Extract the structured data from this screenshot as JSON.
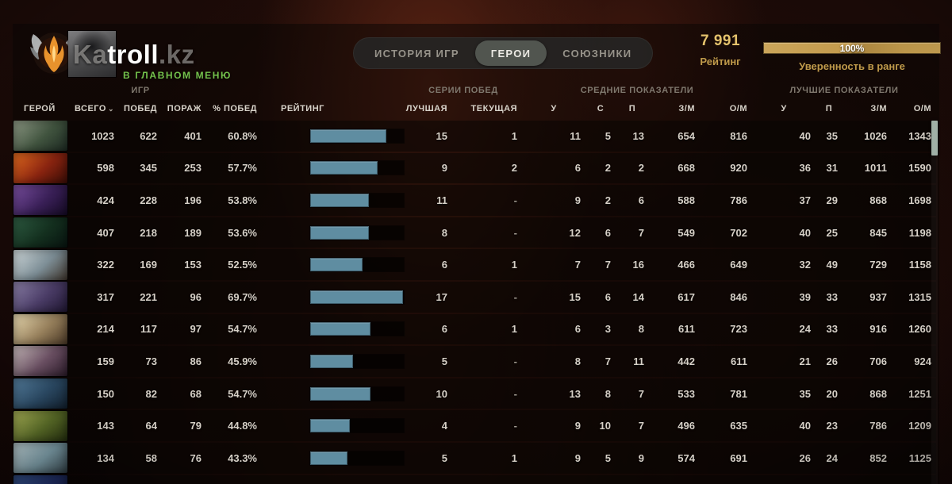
{
  "header": {
    "watermark_prefix": "Ka",
    "player_name": "troll",
    "watermark_suffix": ".kz",
    "status": "В ГЛАВНОМ МЕНЮ",
    "tabs": [
      {
        "label": "ИСТОРИЯ ИГР",
        "active": false
      },
      {
        "label": "ГЕРОИ",
        "active": true
      },
      {
        "label": "СОЮЗНИКИ",
        "active": false
      }
    ],
    "rating_value": "7 991",
    "rating_label": "Рейтинг",
    "confidence_value": "100%",
    "confidence_label": "Уверенность в ранге"
  },
  "colors": {
    "accent_gold": "#d9b363",
    "accent_green": "#74c24c",
    "bar_fill": "#5f8da1",
    "tab_active_bg": "#51554f"
  },
  "table": {
    "groups": {
      "games": "ИГР",
      "streaks": "СЕРИИ ПОБЕД",
      "averages": "СРЕДНИЕ ПОКАЗАТЕЛИ",
      "bests": "ЛУЧШИЕ ПОКАЗАТЕЛИ"
    },
    "columns": {
      "hero": "ГЕРОЙ",
      "total": "ВСЕГО",
      "wins": "ПОБЕД",
      "losses": "ПОРАЖ",
      "winrate": "% ПОБЕД",
      "rating": "РЕЙТИНГ",
      "best_streak": "ЛУЧШАЯ",
      "current_streak": "ТЕКУЩАЯ",
      "kills": "У",
      "deaths": "С",
      "assists": "П",
      "gpm": "З/М",
      "xpm": "О/М",
      "best_kills": "У",
      "best_assists": "П",
      "best_gpm": "З/М",
      "best_xpm": "О/М"
    },
    "sort_chevron": "⌄",
    "rows": [
      {
        "icon": [
          "#8d9884",
          "#41543f",
          "#1d2a22"
        ],
        "total": "1023",
        "wins": "622",
        "losses": "401",
        "winrate": "60.8%",
        "bar": 0.81,
        "best_streak": "15",
        "current_streak": "1",
        "kills": "11",
        "deaths": "5",
        "assists": "13",
        "gpm": "654",
        "xpm": "816",
        "best_kills": "40",
        "best_assists": "35",
        "best_gpm": "1026",
        "best_xpm": "1343"
      },
      {
        "icon": [
          "#e06a1f",
          "#8a2410",
          "#3a0d06"
        ],
        "total": "598",
        "wins": "345",
        "losses": "253",
        "winrate": "57.7%",
        "bar": 0.72,
        "best_streak": "9",
        "current_streak": "2",
        "kills": "6",
        "deaths": "2",
        "assists": "2",
        "gpm": "668",
        "xpm": "920",
        "best_kills": "36",
        "best_assists": "31",
        "best_gpm": "1011",
        "best_xpm": "1590"
      },
      {
        "icon": [
          "#7a4fa0",
          "#3a2058",
          "#150a24"
        ],
        "total": "424",
        "wins": "228",
        "losses": "196",
        "winrate": "53.8%",
        "bar": 0.63,
        "best_streak": "11",
        "current_streak": "-",
        "kills": "9",
        "deaths": "2",
        "assists": "6",
        "gpm": "588",
        "xpm": "786",
        "best_kills": "37",
        "best_assists": "29",
        "best_gpm": "868",
        "best_xpm": "1698"
      },
      {
        "icon": [
          "#2e5c42",
          "#14301f",
          "#081410"
        ],
        "total": "407",
        "wins": "218",
        "losses": "189",
        "winrate": "53.6%",
        "bar": 0.63,
        "best_streak": "8",
        "current_streak": "-",
        "kills": "12",
        "deaths": "6",
        "assists": "7",
        "gpm": "549",
        "xpm": "702",
        "best_kills": "40",
        "best_assists": "25",
        "best_gpm": "845",
        "best_xpm": "1198"
      },
      {
        "icon": [
          "#cfd8da",
          "#7d8e96",
          "#3e342b"
        ],
        "total": "322",
        "wins": "169",
        "losses": "153",
        "winrate": "52.5%",
        "bar": 0.56,
        "best_streak": "6",
        "current_streak": "1",
        "kills": "7",
        "deaths": "7",
        "assists": "16",
        "gpm": "466",
        "xpm": "649",
        "best_kills": "32",
        "best_assists": "49",
        "best_gpm": "729",
        "best_xpm": "1158"
      },
      {
        "icon": [
          "#8a7fa6",
          "#4a3c66",
          "#201732"
        ],
        "total": "317",
        "wins": "221",
        "losses": "96",
        "winrate": "69.7%",
        "bar": 0.99,
        "best_streak": "17",
        "current_streak": "-",
        "kills": "15",
        "deaths": "6",
        "assists": "14",
        "gpm": "617",
        "xpm": "846",
        "best_kills": "39",
        "best_assists": "33",
        "best_gpm": "937",
        "best_xpm": "1315"
      },
      {
        "icon": [
          "#e8d9b0",
          "#97805c",
          "#4a3826"
        ],
        "total": "214",
        "wins": "117",
        "losses": "97",
        "winrate": "54.7%",
        "bar": 0.64,
        "best_streak": "6",
        "current_streak": "1",
        "kills": "6",
        "deaths": "3",
        "assists": "8",
        "gpm": "611",
        "xpm": "723",
        "best_kills": "24",
        "best_assists": "33",
        "best_gpm": "916",
        "best_xpm": "1260"
      },
      {
        "icon": [
          "#cdbfc0",
          "#6a4f62",
          "#2a1a28"
        ],
        "total": "159",
        "wins": "73",
        "losses": "86",
        "winrate": "45.9%",
        "bar": 0.46,
        "best_streak": "5",
        "current_streak": "-",
        "kills": "8",
        "deaths": "7",
        "assists": "11",
        "gpm": "442",
        "xpm": "611",
        "best_kills": "21",
        "best_assists": "26",
        "best_gpm": "706",
        "best_xpm": "924"
      },
      {
        "icon": [
          "#5a86a8",
          "#2c4b66",
          "#12202e"
        ],
        "total": "150",
        "wins": "82",
        "losses": "68",
        "winrate": "54.7%",
        "bar": 0.64,
        "best_streak": "10",
        "current_streak": "-",
        "kills": "13",
        "deaths": "8",
        "assists": "7",
        "gpm": "533",
        "xpm": "781",
        "best_kills": "35",
        "best_assists": "20",
        "best_gpm": "868",
        "best_xpm": "1251"
      },
      {
        "icon": [
          "#b8c25e",
          "#5d7029",
          "#26300f"
        ],
        "total": "143",
        "wins": "64",
        "losses": "79",
        "winrate": "44.8%",
        "bar": 0.42,
        "best_streak": "4",
        "current_streak": "-",
        "kills": "9",
        "deaths": "10",
        "assists": "7",
        "gpm": "496",
        "xpm": "635",
        "best_kills": "40",
        "best_assists": "23",
        "best_gpm": "786",
        "best_xpm": "1209"
      },
      {
        "icon": [
          "#cfe2e6",
          "#7fa0ab",
          "#35444b"
        ],
        "total": "134",
        "wins": "58",
        "losses": "76",
        "winrate": "43.3%",
        "bar": 0.4,
        "best_streak": "5",
        "current_streak": "1",
        "kills": "9",
        "deaths": "5",
        "assists": "9",
        "gpm": "574",
        "xpm": "691",
        "best_kills": "26",
        "best_assists": "24",
        "best_gpm": "852",
        "best_xpm": "1125"
      }
    ],
    "partial_row": {
      "icon": [
        "#3a5a9a",
        "#22306a",
        "#10162e"
      ]
    }
  }
}
